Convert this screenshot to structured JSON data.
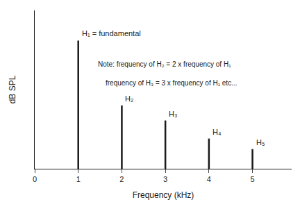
{
  "chart_data": {
    "type": "bar",
    "xlabel": "Frequency (kHz)",
    "ylabel": "dB SPL",
    "x": [
      1,
      2,
      3,
      4,
      5
    ],
    "values": [
      0.85,
      0.42,
      0.32,
      0.2,
      0.13
    ],
    "color": "#1a1a1a",
    "bar_labels": [
      "H₁ = fundamental",
      "H₂",
      "H₃",
      "H₄",
      "H₅"
    ],
    "annotations": [
      "Note: frequency of H₂ = 2 x frequency of H₁",
      "frequency of H₃ = 3 x frequency of H₁ etc..."
    ],
    "xlim": [
      0,
      5.9
    ],
    "xticks": [
      0,
      1,
      2,
      3,
      4,
      5
    ],
    "ylim": [
      0,
      1.05
    ],
    "tick_labels": "x",
    "grid": false
  }
}
